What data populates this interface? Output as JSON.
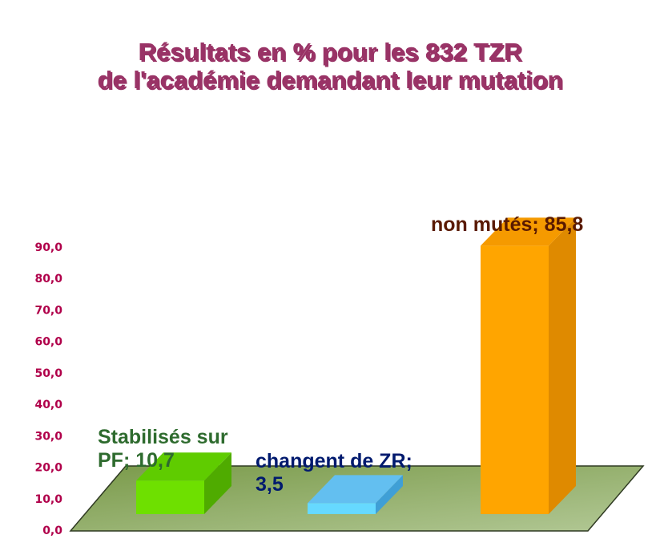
{
  "colors": {
    "title": "#993366",
    "title_shadow": "#b8b8b8",
    "ticks": "#b0004a",
    "floor_light": "#a8c08a",
    "floor_dark": "#7a9a4a",
    "floor_edge": "#2f3a22"
  },
  "chart_data": {
    "type": "bar",
    "title_lines": [
      "Résultats en % pour les 832 TZR",
      "de l'académie demandant leur mutation"
    ],
    "xlabel": "",
    "ylabel": "",
    "ylim": [
      0,
      90
    ],
    "yticks": [
      "0,0",
      "10,0",
      "20,0",
      "30,0",
      "40,0",
      "50,0",
      "60,0",
      "70,0",
      "80,0",
      "90,0"
    ],
    "grid": false,
    "legend": "none",
    "categories": [
      "Stabilisés sur PF",
      "changent de ZR",
      "non mutés"
    ],
    "values": [
      10.7,
      3.5,
      85.8
    ],
    "data_labels": [
      [
        "Stabilisés sur",
        "PF; 10,7"
      ],
      [
        "changent de ZR;",
        "3,5"
      ],
      [
        "non mutés; 85,8"
      ]
    ],
    "bar_colors": [
      {
        "front": "#6ee000",
        "top": "#5fcc00",
        "side": "#4fab00",
        "label": "#2e6b2e"
      },
      {
        "front": "#66d9ff",
        "top": "#63bff0",
        "side": "#3f9fd6",
        "label": "#001a6e"
      },
      {
        "front": "#ffa500",
        "top": "#f59a00",
        "side": "#df8a00",
        "label": "#5a1a00"
      }
    ]
  }
}
